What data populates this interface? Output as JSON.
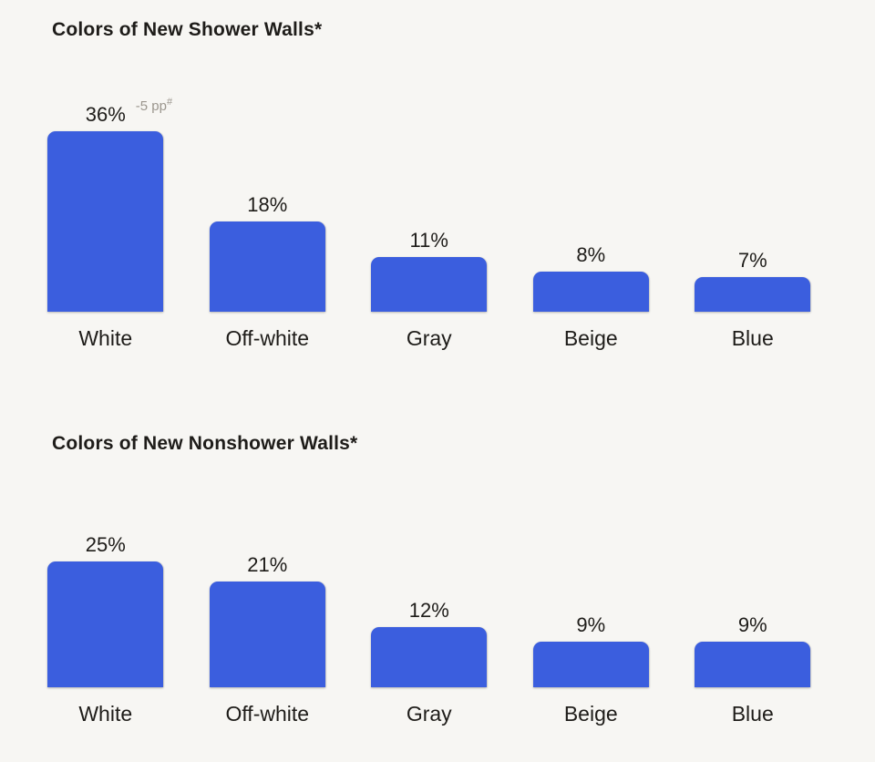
{
  "page": {
    "background_color": "#f7f6f3",
    "text_color": "#1e1c19",
    "annotation_color": "#9b968e",
    "accent_color": "#3b5ede"
  },
  "chart_data": [
    {
      "type": "bar",
      "title": "Colors of New Shower Walls*",
      "categories": [
        "White",
        "Off-white",
        "Gray",
        "Beige",
        "Blue"
      ],
      "values": [
        36,
        18,
        11,
        8,
        7
      ],
      "value_labels": [
        "36%",
        "18%",
        "11%",
        "8%",
        "7%"
      ],
      "annotations": [
        {
          "category": "White",
          "text": "-5 pp",
          "superscript": "#"
        }
      ],
      "xlabel": "",
      "ylabel": "",
      "ylim": [
        0,
        40
      ],
      "grid": false,
      "legend": "none",
      "bar_color": "#3b5ede"
    },
    {
      "type": "bar",
      "title": "Colors of New Nonshower Walls*",
      "categories": [
        "White",
        "Off-white",
        "Gray",
        "Beige",
        "Blue"
      ],
      "values": [
        25,
        21,
        12,
        9,
        9
      ],
      "value_labels": [
        "25%",
        "21%",
        "12%",
        "9%",
        "9%"
      ],
      "annotations": [],
      "xlabel": "",
      "ylabel": "",
      "ylim": [
        0,
        40
      ],
      "grid": false,
      "legend": "none",
      "bar_color": "#3b5ede"
    }
  ]
}
